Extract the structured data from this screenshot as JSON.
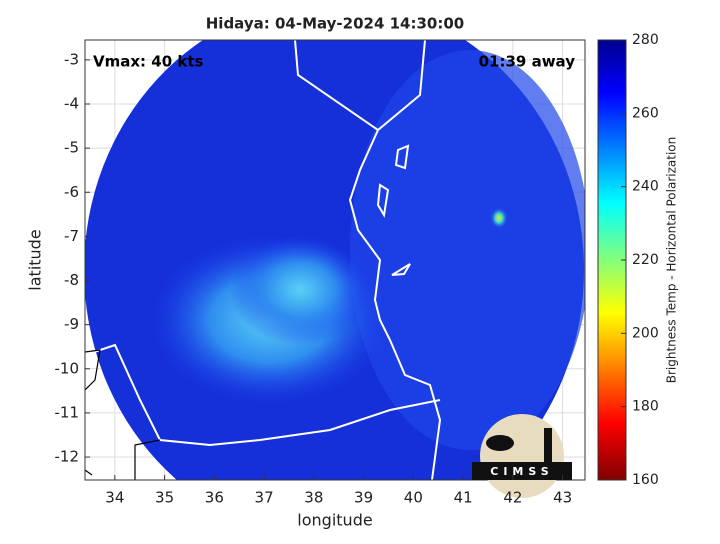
{
  "chart_data": {
    "type": "map",
    "title": "Hidaya: 04-May-2024 14:30:00",
    "annotations": [
      "Vmax: 40 kts",
      "01:39 away"
    ],
    "xlabel": "longitude",
    "ylabel": "latitude",
    "xlim": [
      33.4,
      43.45
    ],
    "ylim": [
      -12.52,
      -2.55
    ],
    "xticks": [
      34,
      35,
      36,
      37,
      38,
      39,
      40,
      41,
      42,
      43
    ],
    "yticks": [
      -3,
      -4,
      -5,
      -6,
      -7,
      -8,
      -9,
      -10,
      -11,
      -12
    ],
    "grid": true,
    "colorbar": {
      "label": "Brightness Temp - Horizontal Polarization",
      "lim": [
        160,
        280
      ],
      "ticks": [
        160,
        180,
        200,
        220,
        240,
        260,
        280
      ]
    },
    "logo": "CIMSS"
  }
}
